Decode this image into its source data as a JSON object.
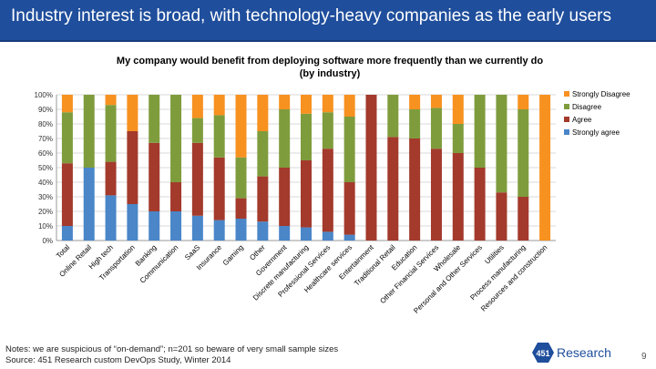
{
  "slide": {
    "title": "Industry interest is broad, with technology-heavy companies as the early users",
    "notes_line1": "Notes: we are suspicious of “on-demand”; n=201 so beware of very small sample sizes",
    "notes_line2": "Source: 451 Research custom DevOps Study, Winter 2014",
    "page_number": "9",
    "logo_number": "451",
    "logo_word": "Research"
  },
  "chart_data": {
    "type": "bar",
    "stacked": true,
    "percent": true,
    "title_line1": "My company would benefit from deploying software more frequently than we currently do",
    "title_line2": "(by industry)",
    "ylim": [
      0,
      100
    ],
    "yticks": [
      "0%",
      "10%",
      "20%",
      "30%",
      "40%",
      "50%",
      "60%",
      "70%",
      "80%",
      "90%",
      "100%"
    ],
    "legend_position": "right",
    "categories": [
      "Total",
      "Online Retail",
      "High tech",
      "Transportation",
      "Banking",
      "Communication",
      "SaaS",
      "Insurance",
      "Gaming",
      "Other",
      "Government",
      "Discrete manufacturing",
      "Professional Services",
      "Healthcare services",
      "Entertainment",
      "Traditional Retail",
      "Education",
      "Other Financial Services",
      "Wholesale",
      "Personal and Other Services",
      "Utilities",
      "Process manufacturing",
      "Resources and construction"
    ],
    "series": [
      {
        "name": "Strongly agree",
        "color": "#4a86c8",
        "values": [
          10,
          50,
          31,
          25,
          20,
          20,
          17,
          14,
          15,
          13,
          10,
          9,
          6,
          4,
          0,
          0,
          0,
          0,
          0,
          0,
          0,
          0,
          0
        ]
      },
      {
        "name": "Agree",
        "color": "#a33a2c",
        "values": [
          43,
          0,
          23,
          50,
          47,
          20,
          50,
          43,
          14,
          31,
          40,
          46,
          57,
          36,
          100,
          71,
          70,
          63,
          60,
          50,
          33,
          30,
          0
        ]
      },
      {
        "name": "Disagree",
        "color": "#7f9c3d",
        "values": [
          35,
          50,
          39,
          0,
          33,
          60,
          17,
          29,
          28,
          31,
          40,
          32,
          25,
          45,
          0,
          29,
          20,
          28,
          20,
          50,
          67,
          60,
          0
        ]
      },
      {
        "name": "Strongly Disagree",
        "color": "#f79120",
        "values": [
          12,
          0,
          7,
          25,
          0,
          0,
          16,
          14,
          43,
          25,
          10,
          13,
          12,
          15,
          0,
          0,
          10,
          9,
          20,
          0,
          0,
          10,
          100
        ]
      }
    ],
    "legend_order": [
      "Strongly Disagree",
      "Disagree",
      "Agree",
      "Strongly agree"
    ]
  }
}
